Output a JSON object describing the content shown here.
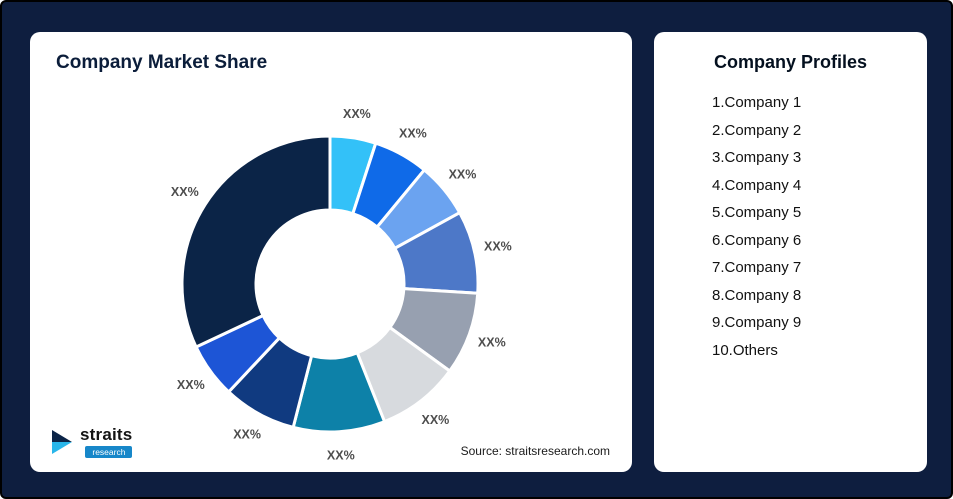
{
  "left_card": {
    "title": "Company Market Share",
    "source": "Source: straitsresearch.com"
  },
  "logo": {
    "name": "straits",
    "sub": "research"
  },
  "right_card": {
    "title": "Company Profiles",
    "items": [
      "1.Company 1",
      "2.Company 2",
      "3.Company 3",
      "4.Company 4",
      "5.Company 5",
      "6.Company 6",
      "7.Company 7",
      "8.Company 8",
      "9.Company 9",
      "10.Others"
    ]
  },
  "chart_data": {
    "type": "pie",
    "subtype": "donut",
    "title": "Company Market Share",
    "label_text": "XX%",
    "legend_position": "none",
    "start_angle_deg": 0,
    "direction": "clockwise",
    "series": [
      {
        "name": "Company 1",
        "value": 5,
        "label": "XX%",
        "color": "#33c1f8"
      },
      {
        "name": "Company 2",
        "value": 6,
        "label": "XX%",
        "color": "#0f6ae8"
      },
      {
        "name": "Company 3",
        "value": 6,
        "label": "XX%",
        "color": "#6ba3f0"
      },
      {
        "name": "Company 4",
        "value": 9,
        "label": "XX%",
        "color": "#4d78c8"
      },
      {
        "name": "Company 5",
        "value": 9,
        "label": "XX%",
        "color": "#97a0b0"
      },
      {
        "name": "Company 6",
        "value": 9,
        "label": "XX%",
        "color": "#d7dade"
      },
      {
        "name": "Company 7",
        "value": 10,
        "label": "XX%",
        "color": "#0d81a8"
      },
      {
        "name": "Company 8",
        "value": 8,
        "label": "XX%",
        "color": "#103a80"
      },
      {
        "name": "Company 9",
        "value": 6,
        "label": "XX%",
        "color": "#1d55d6"
      },
      {
        "name": "Others",
        "value": 32,
        "label": "XX%",
        "color": "#0b2447"
      }
    ]
  }
}
